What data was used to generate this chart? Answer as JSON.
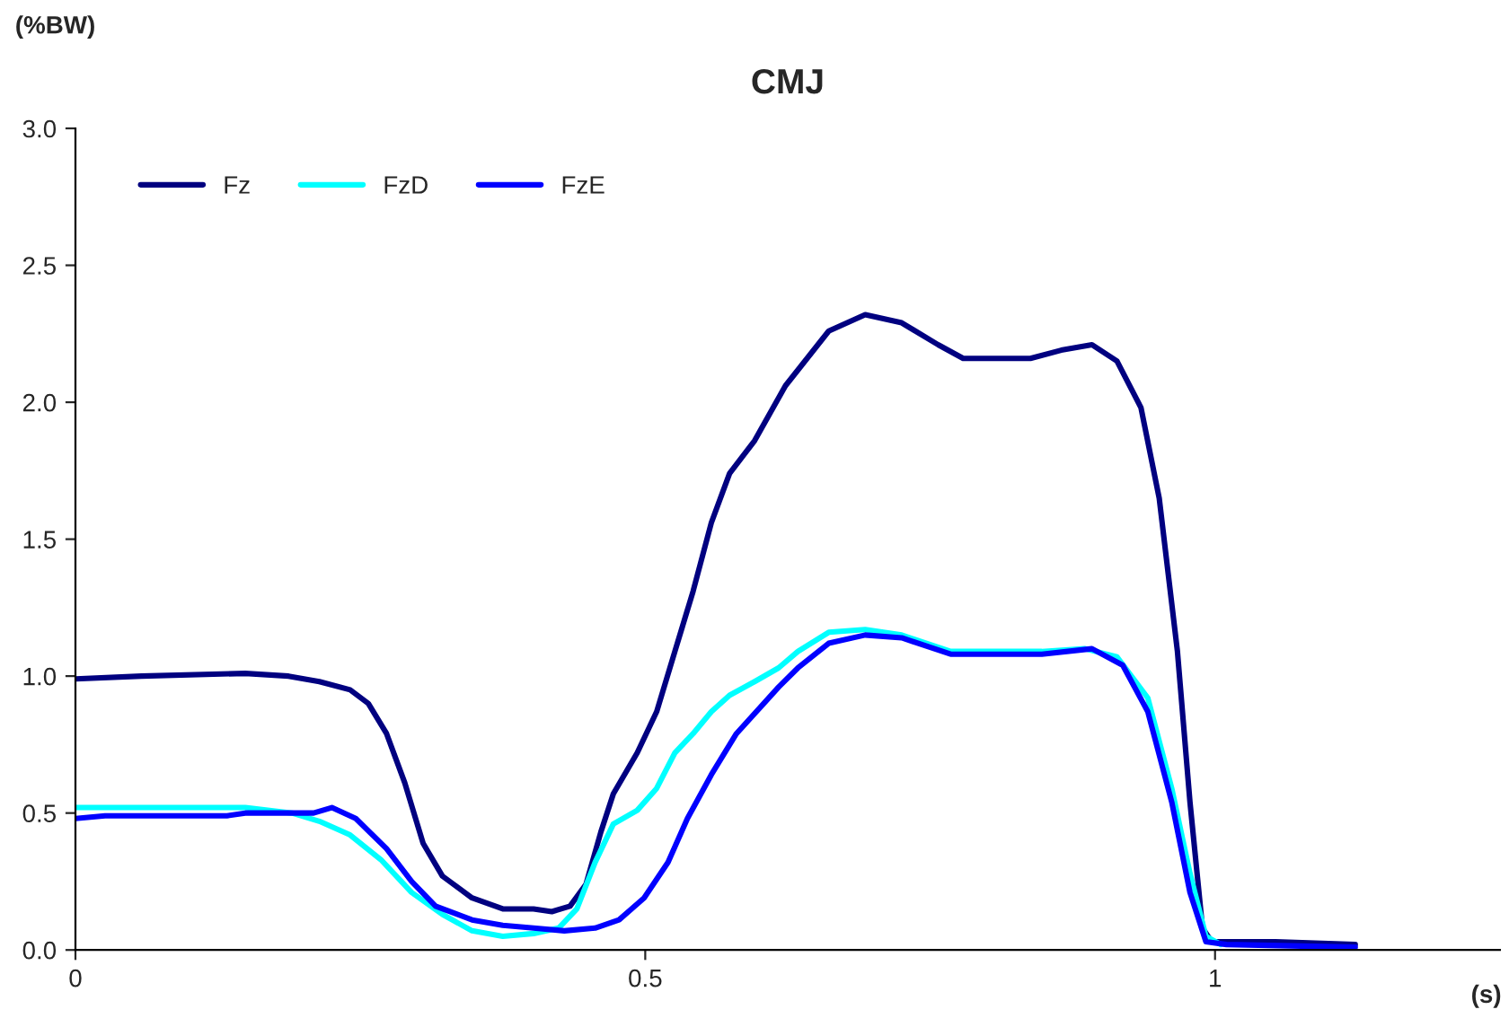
{
  "chart_data": {
    "type": "line",
    "title": "CMJ",
    "xlabel": "(s)",
    "ylabel": "(%BW)",
    "xlim": [
      0,
      1.25
    ],
    "xticks": [
      0,
      0.5,
      1
    ],
    "ylim": [
      0,
      3.0
    ],
    "yticks": [
      {
        "value": 0,
        "label": "0.0"
      },
      {
        "value": 0.5,
        "label": "0.5"
      },
      {
        "value": 1,
        "label": "1.0"
      },
      {
        "value": 1.5,
        "label": "1.5"
      },
      {
        "value": 2,
        "label": "2.0"
      },
      {
        "value": 2.5,
        "label": "2.5"
      },
      {
        "value": 3,
        "label": "3.0"
      }
    ],
    "grid": false,
    "legend": "top left",
    "marker": "none",
    "line_style": "solid",
    "series": [
      {
        "name": "Fz",
        "color": "#000080",
        "x": [
          0,
          0.058,
          0.149,
          0.187,
          0.214,
          0.241,
          0.257,
          0.273,
          0.289,
          0.305,
          0.322,
          0.348,
          0.375,
          0.402,
          0.418,
          0.434,
          0.448,
          0.461,
          0.472,
          0.493,
          0.51,
          0.526,
          0.542,
          0.558,
          0.574,
          0.596,
          0.623,
          0.661,
          0.693,
          0.725,
          0.757,
          0.779,
          0.838,
          0.865,
          0.892,
          0.914,
          0.935,
          0.951,
          0.967,
          0.978,
          0.989,
          0.997,
          1.026,
          1.053,
          1.123
        ],
        "values": [
          0.99,
          1.0,
          1.01,
          1.0,
          0.98,
          0.95,
          0.9,
          0.79,
          0.61,
          0.39,
          0.27,
          0.19,
          0.15,
          0.15,
          0.14,
          0.16,
          0.24,
          0.43,
          0.57,
          0.72,
          0.87,
          1.09,
          1.31,
          1.56,
          1.74,
          1.86,
          2.06,
          2.26,
          2.32,
          2.29,
          2.21,
          2.16,
          2.16,
          2.19,
          2.21,
          2.15,
          1.98,
          1.65,
          1.09,
          0.54,
          0.08,
          0.03,
          0.03,
          0.03,
          0.02
        ]
      },
      {
        "name": "FzD",
        "color": "#00ffff",
        "x": [
          0,
          0.149,
          0.19,
          0.214,
          0.241,
          0.268,
          0.295,
          0.322,
          0.348,
          0.375,
          0.402,
          0.424,
          0.44,
          0.456,
          0.472,
          0.493,
          0.51,
          0.526,
          0.542,
          0.558,
          0.574,
          0.596,
          0.617,
          0.634,
          0.661,
          0.693,
          0.725,
          0.768,
          0.848,
          0.886,
          0.914,
          0.941,
          0.962,
          0.978,
          0.992,
          1.005
        ],
        "values": [
          0.52,
          0.52,
          0.5,
          0.47,
          0.42,
          0.33,
          0.21,
          0.13,
          0.07,
          0.05,
          0.06,
          0.08,
          0.15,
          0.32,
          0.46,
          0.51,
          0.59,
          0.72,
          0.79,
          0.87,
          0.93,
          0.98,
          1.03,
          1.09,
          1.16,
          1.17,
          1.15,
          1.09,
          1.09,
          1.1,
          1.07,
          0.92,
          0.59,
          0.28,
          0.05,
          0.02
        ]
      },
      {
        "name": "FzE",
        "color": "#0000ff",
        "x": [
          0,
          0.026,
          0.133,
          0.149,
          0.209,
          0.225,
          0.246,
          0.273,
          0.295,
          0.316,
          0.348,
          0.375,
          0.402,
          0.429,
          0.456,
          0.477,
          0.499,
          0.52,
          0.537,
          0.558,
          0.58,
          0.617,
          0.634,
          0.661,
          0.693,
          0.725,
          0.768,
          0.848,
          0.892,
          0.919,
          0.941,
          0.962,
          0.978,
          0.992,
          1.01,
          1.123
        ],
        "values": [
          0.48,
          0.49,
          0.49,
          0.5,
          0.5,
          0.52,
          0.48,
          0.37,
          0.25,
          0.16,
          0.11,
          0.09,
          0.08,
          0.07,
          0.08,
          0.11,
          0.19,
          0.32,
          0.48,
          0.64,
          0.79,
          0.96,
          1.03,
          1.12,
          1.15,
          1.14,
          1.08,
          1.08,
          1.1,
          1.04,
          0.87,
          0.54,
          0.21,
          0.03,
          0.02,
          0.01
        ]
      }
    ]
  }
}
